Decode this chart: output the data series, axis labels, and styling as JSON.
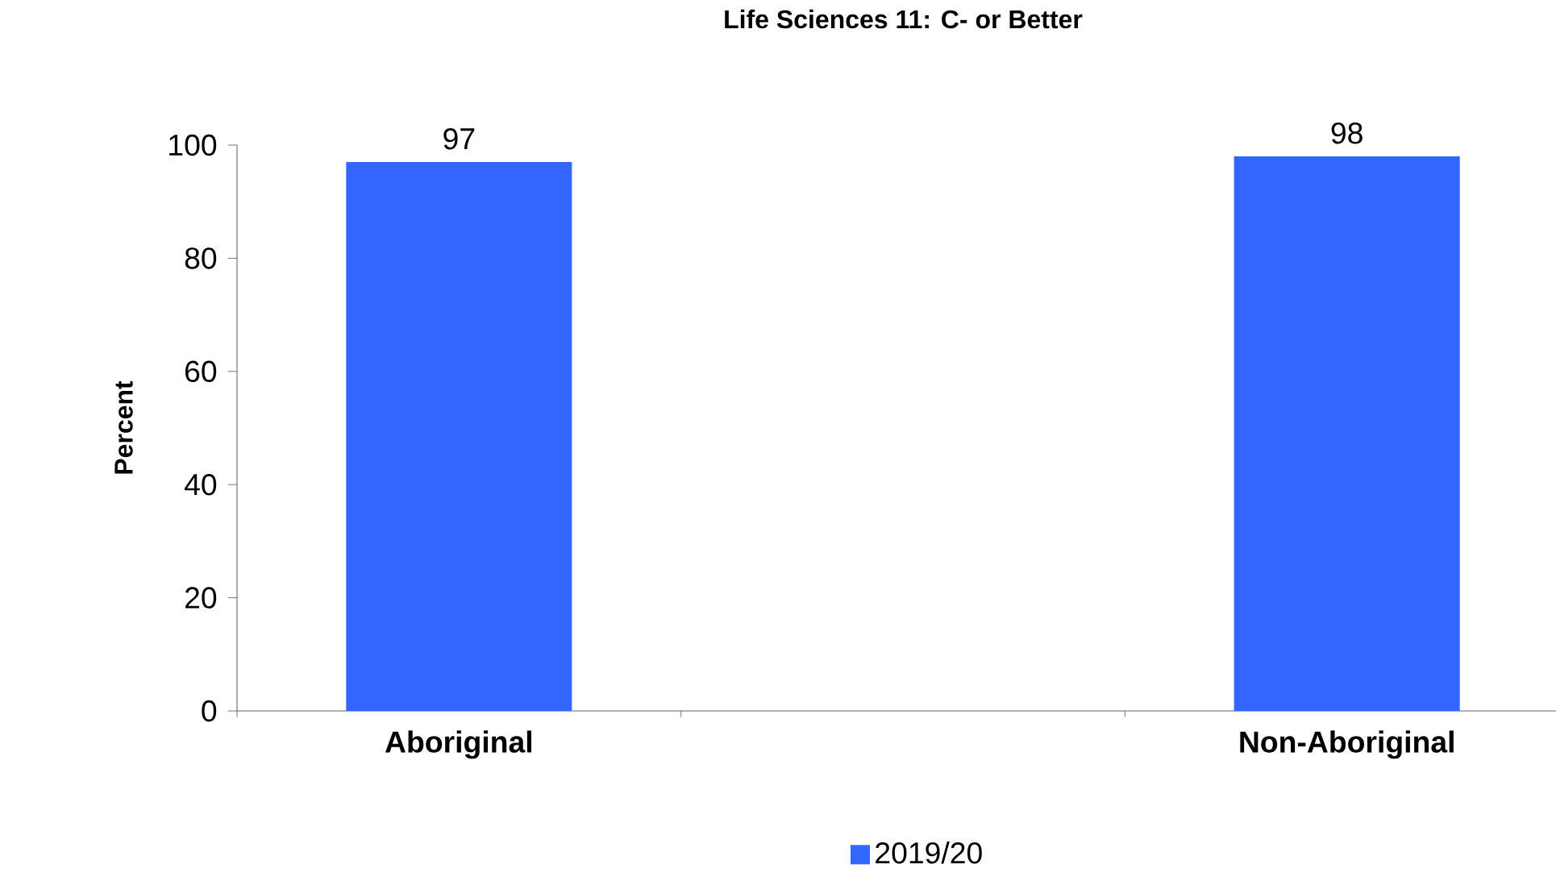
{
  "chart_data": {
    "type": "bar",
    "title": "Life Sciences 11: C- or Better",
    "ylabel": "Percent",
    "categories": [
      "Aboriginal",
      null,
      "Non-Aboriginal"
    ],
    "series": [
      {
        "name": "2019/20",
        "color": "#3366ff",
        "values": [
          97,
          null,
          98
        ]
      }
    ],
    "value_labels": [
      "97",
      null,
      "98"
    ],
    "ylim": [
      0,
      100
    ],
    "yticks": [
      0,
      20,
      40,
      60,
      80,
      100
    ],
    "legend": "bottom"
  }
}
